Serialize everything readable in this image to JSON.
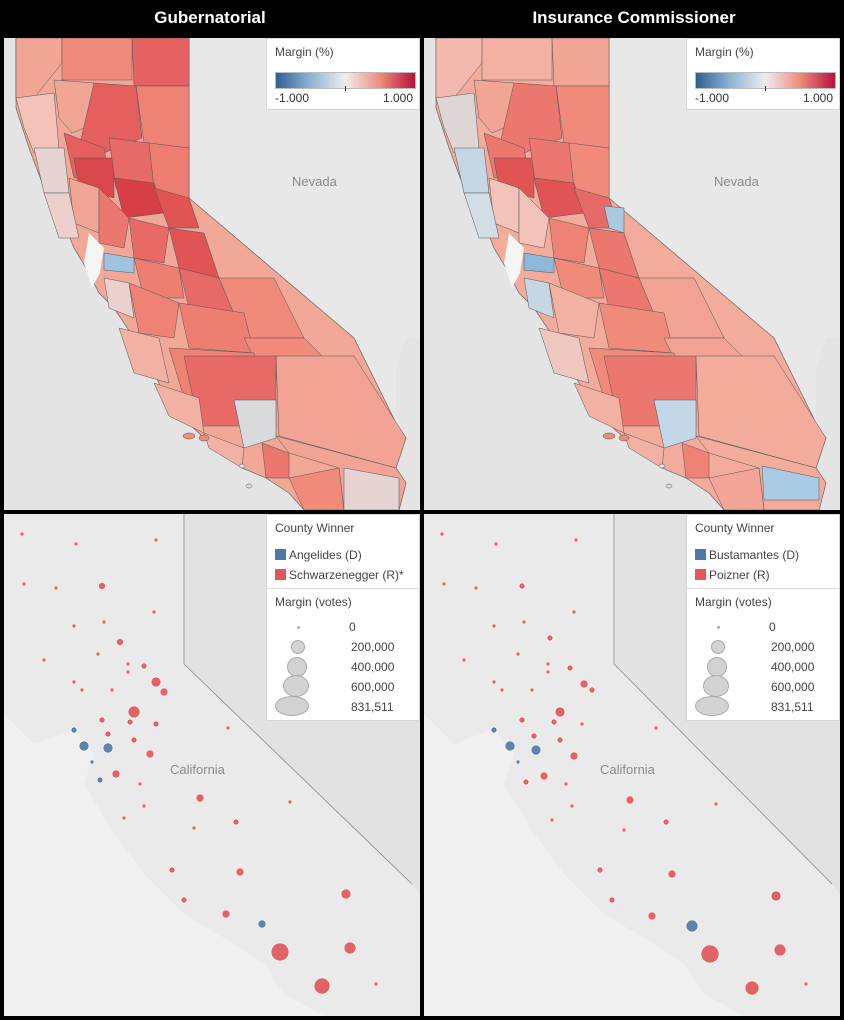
{
  "titles": {
    "left": "Gubernatorial",
    "right": "Insurance Commissioner"
  },
  "margin_pct_legend": {
    "title": "Margin (%)",
    "min_label": "-1.000",
    "max_label": "1.000"
  },
  "map_labels": {
    "nevada": "Nevada",
    "california": "California"
  },
  "gov_winner_legend": {
    "title": "County Winner",
    "items": [
      {
        "label": "Angelides (D)",
        "color": "#4e79a7"
      },
      {
        "label": "Schwarzenegger (R)*",
        "color": "#e15759"
      }
    ]
  },
  "ins_winner_legend": {
    "title": "County Winner",
    "items": [
      {
        "label": "Bustamantes (D)",
        "color": "#4e79a7"
      },
      {
        "label": "Poizner (R)",
        "color": "#e15759"
      }
    ]
  },
  "size_legend": {
    "title": "Margin (votes)",
    "items": [
      "0",
      "200,000",
      "400,000",
      "600,000",
      "831,511"
    ]
  },
  "colors": {
    "land": "#e4e4e4",
    "water": "#f5f5f5",
    "dem": "#4e79a7",
    "rep": "#e15759"
  }
}
